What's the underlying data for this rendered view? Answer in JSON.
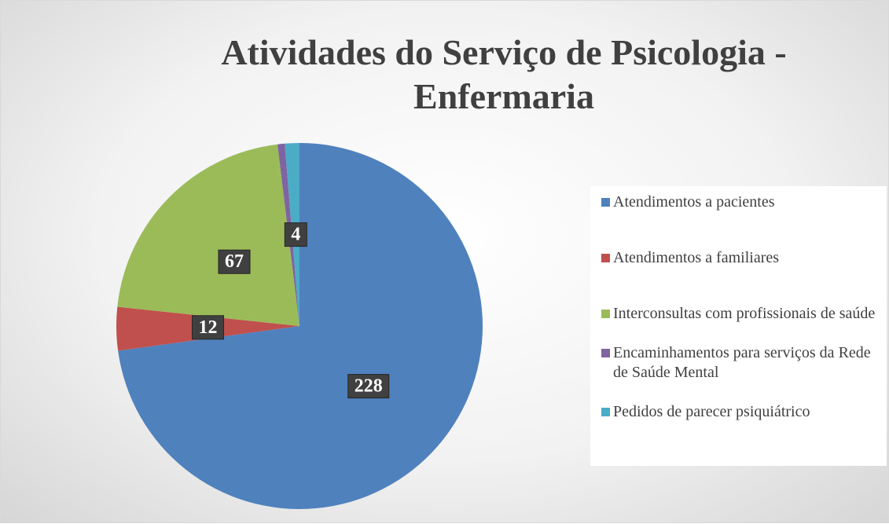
{
  "chart_data": {
    "type": "pie",
    "title": "Atividades do Serviço de Psicologia - Enfermaria",
    "categories": [
      "Atendimentos a pacientes",
      "Atendimentos a familiares",
      "Interconsultas com profissionais de saúde",
      "Encaminhamentos para serviços da Rede de Saúde Mental",
      "Pedidos de parecer psiquiátrico"
    ],
    "values": [
      228,
      12,
      67,
      2,
      4
    ],
    "value_labels": [
      "228",
      "12",
      "67",
      null,
      "4"
    ],
    "colors": [
      "#4f81bd",
      "#c0504d",
      "#9bbb59",
      "#8064a2",
      "#4bacc6"
    ],
    "legend": "right"
  }
}
